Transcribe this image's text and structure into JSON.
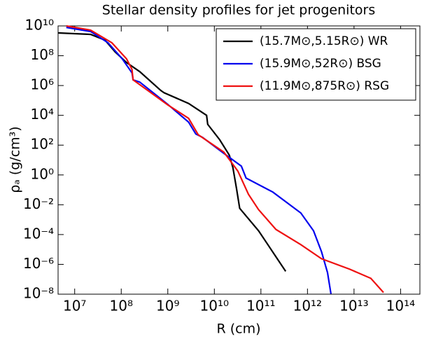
{
  "chart_data": {
    "type": "line",
    "title": "Stellar density profiles for jet progenitors",
    "xlabel": "R (cm)",
    "ylabel": "ρₐ (g/cm³)",
    "xscale": "log",
    "yscale": "log",
    "legend": "upper right",
    "xlim": [
      4400000.0,
      260000000000000.0
    ],
    "ylim": [
      1e-08,
      10000000000.0
    ],
    "xticks": [
      {
        "value": 10000000.0,
        "label": "10⁷"
      },
      {
        "value": 100000000.0,
        "label": "10⁸"
      },
      {
        "value": 1000000000.0,
        "label": "10⁹"
      },
      {
        "value": 10000000000.0,
        "label": "10¹⁰"
      },
      {
        "value": 100000000000.0,
        "label": "10¹¹"
      },
      {
        "value": 1000000000000.0,
        "label": "10¹²"
      },
      {
        "value": 10000000000000.0,
        "label": "10¹³"
      },
      {
        "value": 100000000000000.0,
        "label": "10¹⁴"
      }
    ],
    "yticks": [
      {
        "value": 1e-08,
        "label": "10⁻⁸"
      },
      {
        "value": 1e-06,
        "label": "10⁻⁶"
      },
      {
        "value": 0.0001,
        "label": "10⁻⁴"
      },
      {
        "value": 0.01,
        "label": "10⁻²"
      },
      {
        "value": 1,
        "label": "10⁰"
      },
      {
        "value": 100,
        "label": "10²"
      },
      {
        "value": 10000.0,
        "label": "10⁴"
      },
      {
        "value": 1000000.0,
        "label": "10⁶"
      },
      {
        "value": 100000000.0,
        "label": "10⁸"
      },
      {
        "value": 10000000000.0,
        "label": "10¹⁰"
      }
    ],
    "series": [
      {
        "name": "(15.7M⊙,5.15R⊙) WR",
        "color": "#000000",
        "x": [
          4400000.0,
          22000000.0,
          45000000.0,
          74000000.0,
          130000000.0,
          250000000.0,
          710000000.0,
          830000000.0,
          2800000000.0,
          6800000000.0,
          7200000000.0,
          13000000000.0,
          21000000000.0,
          25000000000.0,
          30000000000.0,
          35000000000.0,
          89000000000.0,
          340000000000.0
        ],
        "values": [
          3400000000.0,
          2700000000.0,
          1100000000.0,
          180000000.0,
          35000000.0,
          8500000.0,
          460000.0,
          330000.0,
          63000.0,
          10000.0,
          2500.0,
          230,
          21,
          3.1,
          0.12,
          0.0058,
          0.00018,
          3.4e-07
        ]
      },
      {
        "name": "(15.9M⊙,52R⊙) BSG",
        "color": "#0000ee",
        "x": [
          6600000.0,
          22000000.0,
          52000000.0,
          105000000.0,
          170000000.0,
          180000000.0,
          250000000.0,
          1000000000.0,
          2800000000.0,
          4000000000.0,
          5600000000.0,
          16000000000.0,
          38000000000.0,
          48000000000.0,
          180000000000.0,
          720000000000.0,
          1350000000000.0,
          2000000000000.0,
          2700000000000.0,
          3200000000000.0
        ],
        "values": [
          7900000000.0,
          4200000000.0,
          740000000.0,
          62000000.0,
          7100000.0,
          2400000.0,
          1700000.0,
          54000.0,
          3500.0,
          560,
          330,
          28,
          3.9,
          0.62,
          0.071,
          0.0028,
          0.00018,
          7.1e-06,
          2.8e-07,
          1.05e-08
        ]
      },
      {
        "name": "(11.9M⊙,875R⊙) RSG",
        "color": "#ee1111",
        "x": [
          6600000.0,
          22000000.0,
          63000000.0,
          130000000.0,
          170000000.0,
          180000000.0,
          1000000000.0,
          2800000000.0,
          4500000000.0,
          16000000000.0,
          32000000000.0,
          54000000000.0,
          89000000000.0,
          210000000000.0,
          720000000000.0,
          2000000000000.0,
          8100000000000.0,
          23000000000000.0,
          43000000000000.0
        ],
        "values": [
          10000000000.0,
          5200000000.0,
          740000000.0,
          62000000.0,
          12000000.0,
          2400000.0,
          50000.0,
          6300.0,
          500,
          34,
          1.8,
          0.051,
          0.0047,
          0.00022,
          2.1e-05,
          2.4e-06,
          4.7e-07,
          1.15e-07,
          1.3e-08
        ]
      }
    ]
  }
}
